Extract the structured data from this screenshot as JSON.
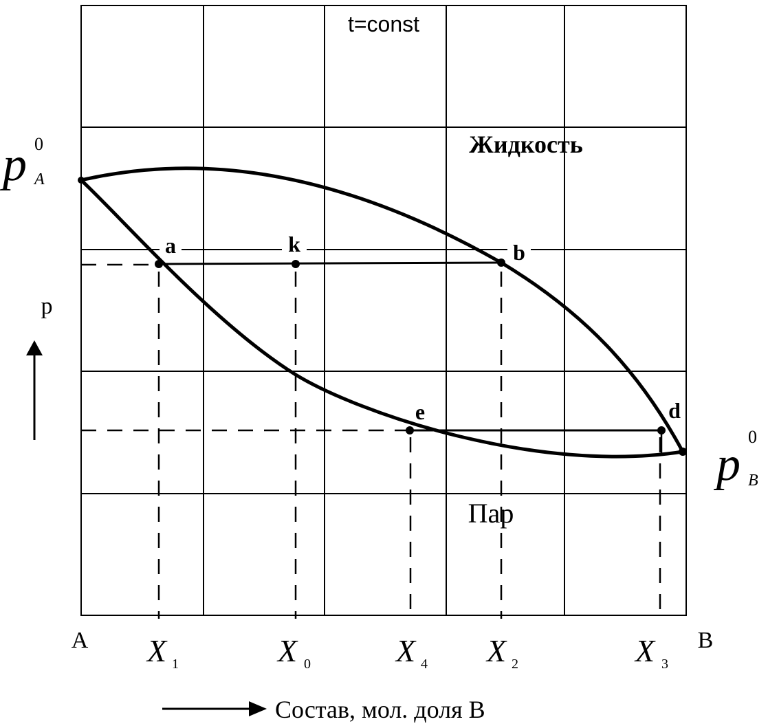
{
  "title": "t=const",
  "regions": {
    "liquid": "Жидкость",
    "vapor": "Пар"
  },
  "y_axis": {
    "label": "p"
  },
  "x_axis": {
    "label": "Состав, мол. доля В",
    "left_end": "A",
    "right_end": "B"
  },
  "pure_pressures": {
    "A": {
      "symbol": "p",
      "subscript": "A",
      "superscript": "0"
    },
    "B": {
      "symbol": "p",
      "subscript": "B",
      "superscript": "0"
    }
  },
  "points": {
    "a": "a",
    "k": "k",
    "b": "b",
    "e": "e",
    "d": "d"
  },
  "compositions": [
    {
      "id": "X1",
      "letter": "X",
      "sub": "1"
    },
    {
      "id": "X0",
      "letter": "X",
      "sub": "0"
    },
    {
      "id": "X4",
      "letter": "X",
      "sub": "4"
    },
    {
      "id": "X2",
      "letter": "X",
      "sub": "2"
    },
    {
      "id": "X3",
      "letter": "X",
      "sub": "3"
    }
  ],
  "colors": {
    "ink": "#000000",
    "background": "#ffffff"
  }
}
